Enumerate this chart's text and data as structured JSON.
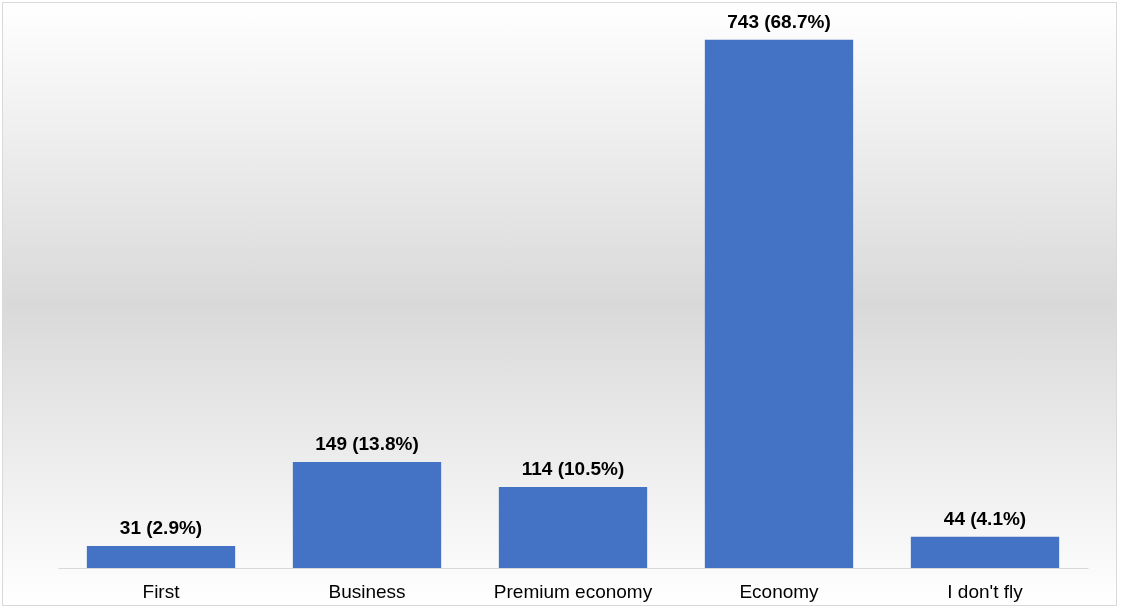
{
  "chart_data": {
    "type": "bar",
    "categories": [
      "First",
      "Business",
      "Premium economy",
      "Economy",
      "I don't fly"
    ],
    "values": [
      31,
      149,
      114,
      743,
      44
    ],
    "value_labels": [
      "31 (2.9%)",
      "149 (13.8%)",
      "114 (10.5%)",
      "743 (68.7%)",
      "44 (4.1%)"
    ],
    "color": "#4472c4"
  }
}
